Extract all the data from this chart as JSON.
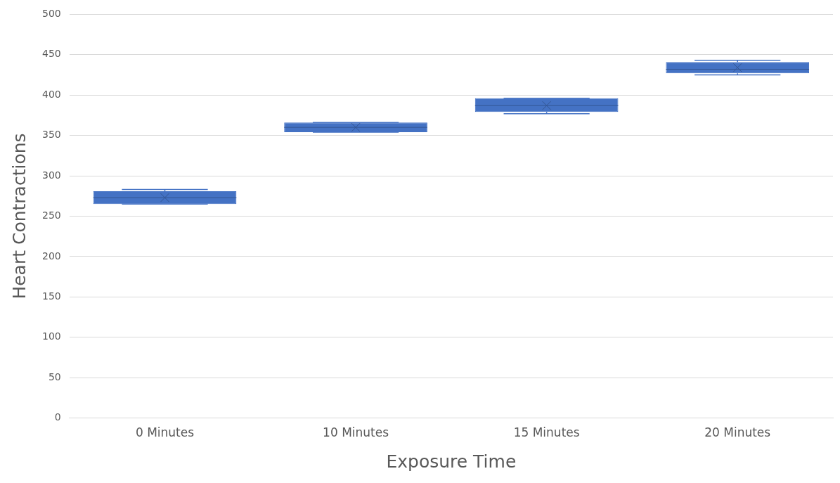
{
  "chart_data": {
    "type": "box",
    "xlabel": "Exposure Time",
    "ylabel": "Heart Contractions",
    "categories": [
      "0 Minutes",
      "10 Minutes",
      "15 Minutes",
      "20 Minutes"
    ],
    "color": "#4472c4",
    "boxes": [
      {
        "low": 265,
        "q1": 265,
        "median": 273,
        "q3": 281,
        "high": 283,
        "mean": 273
      },
      {
        "low": 354,
        "q1": 354,
        "median": 360,
        "q3": 366,
        "high": 366,
        "mean": 360
      },
      {
        "low": 377,
        "q1": 379,
        "median": 387,
        "q3": 396,
        "high": 396,
        "mean": 387
      },
      {
        "low": 425,
        "q1": 427,
        "median": 432,
        "q3": 441,
        "high": 443,
        "mean": 434
      }
    ],
    "ylim": [
      0,
      500
    ],
    "yticks": [
      0,
      50,
      100,
      150,
      200,
      250,
      300,
      350,
      400,
      450,
      500
    ],
    "grid": "y",
    "legend": false
  }
}
